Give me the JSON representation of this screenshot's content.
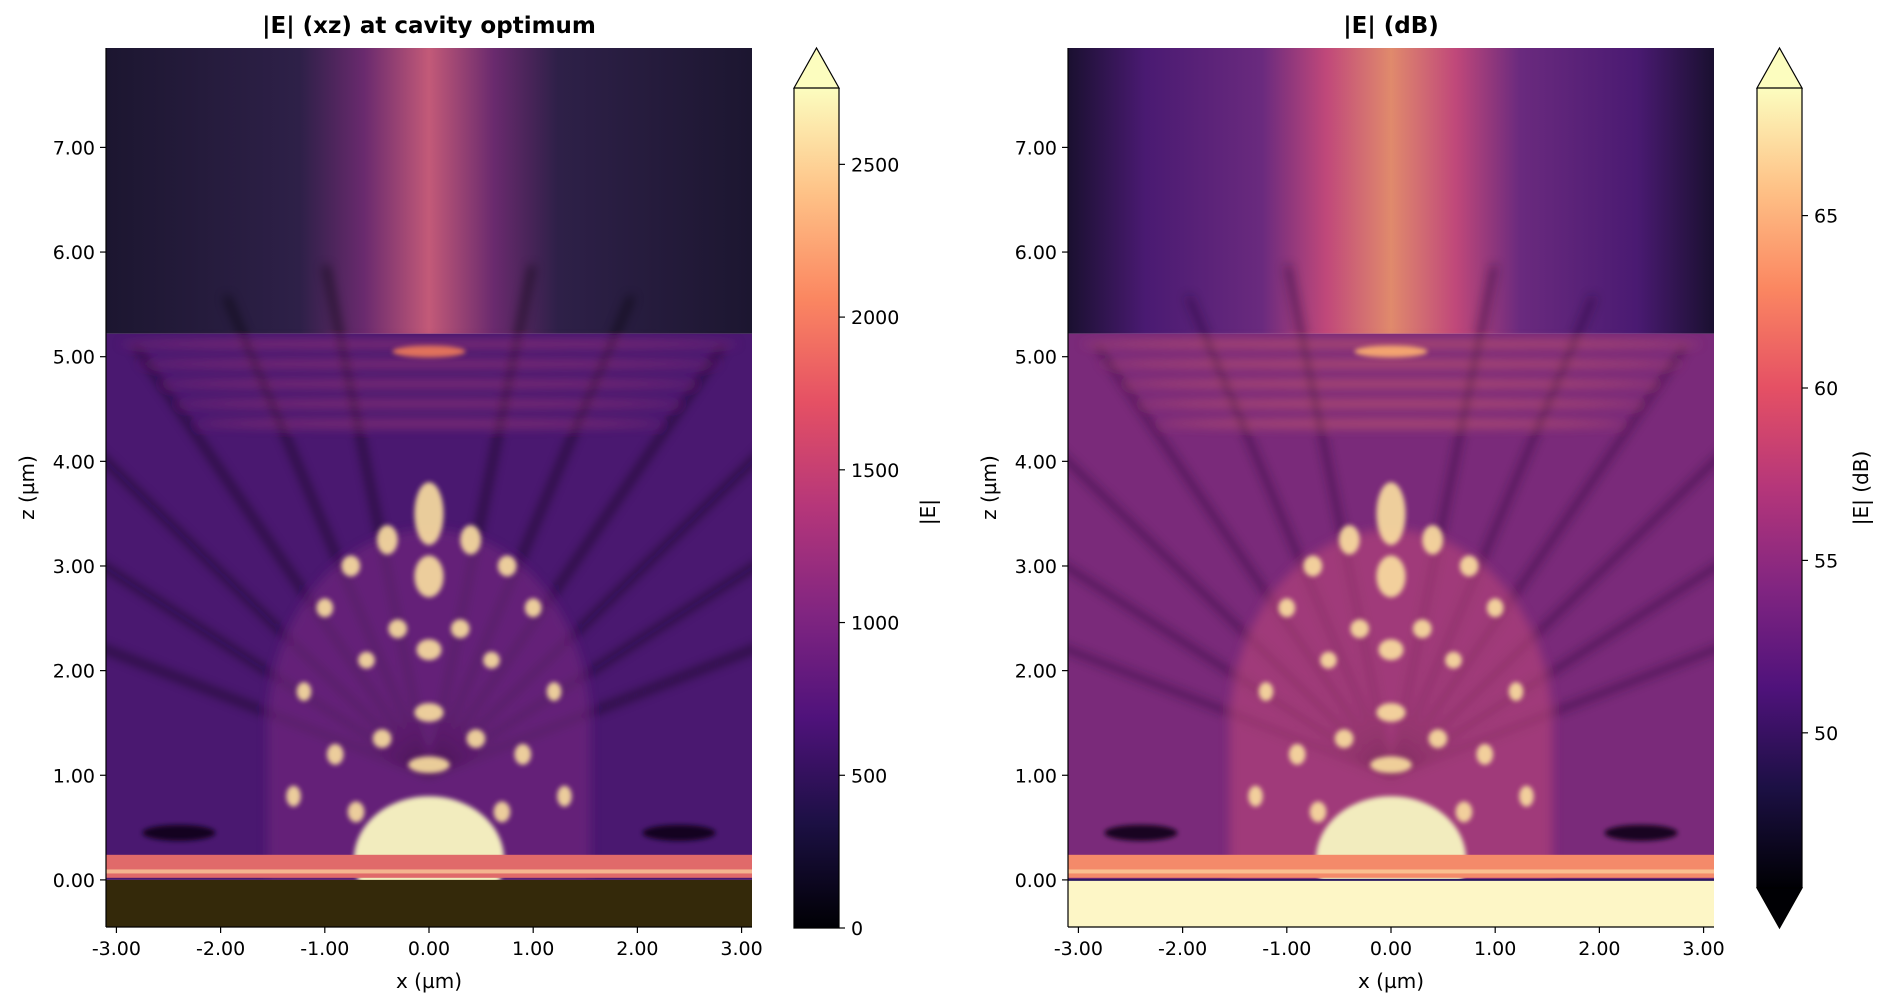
{
  "chart_data": [
    {
      "type": "heatmap",
      "title": "|E| (xz) at cavity optimum",
      "xlabel": "x (µm)",
      "ylabel": "z (µm)",
      "xlim": [
        -3.1,
        3.1
      ],
      "ylim": [
        -0.45,
        7.95
      ],
      "xticks": [
        "-3.00",
        "-2.00",
        "-1.00",
        "0.00",
        "1.00",
        "2.00",
        "3.00"
      ],
      "yticks": [
        "0.00",
        "1.00",
        "2.00",
        "3.00",
        "4.00",
        "5.00",
        "6.00",
        "7.00"
      ],
      "colormap": "magma",
      "colorbar": {
        "label": "|E|",
        "range": [
          0,
          2750
        ],
        "ticks": [
          "0",
          "500",
          "1000",
          "1500",
          "2000",
          "2500"
        ],
        "extend": "max"
      },
      "features": {
        "substrate_top_z": 0.0,
        "interface_z": 5.22,
        "dome_radius_um": 1.55
      }
    },
    {
      "type": "heatmap",
      "title": "|E| (dB)",
      "xlabel": "x (µm)",
      "ylabel": "z (µm)",
      "xlim": [
        -3.1,
        3.1
      ],
      "ylim": [
        -0.45,
        7.95
      ],
      "xticks": [
        "-3.00",
        "-2.00",
        "-1.00",
        "0.00",
        "1.00",
        "2.00",
        "3.00"
      ],
      "yticks": [
        "0.00",
        "1.00",
        "2.00",
        "3.00",
        "4.00",
        "5.00",
        "6.00",
        "7.00"
      ],
      "colormap": "magma",
      "colorbar": {
        "label": "|E| (dB)",
        "range": [
          45.5,
          68.7
        ],
        "ticks": [
          "50",
          "55",
          "60",
          "65"
        ],
        "extend": "both"
      },
      "features": {
        "substrate_top_z": 0.0,
        "interface_z": 5.22,
        "dome_radius_um": 1.55
      }
    }
  ]
}
